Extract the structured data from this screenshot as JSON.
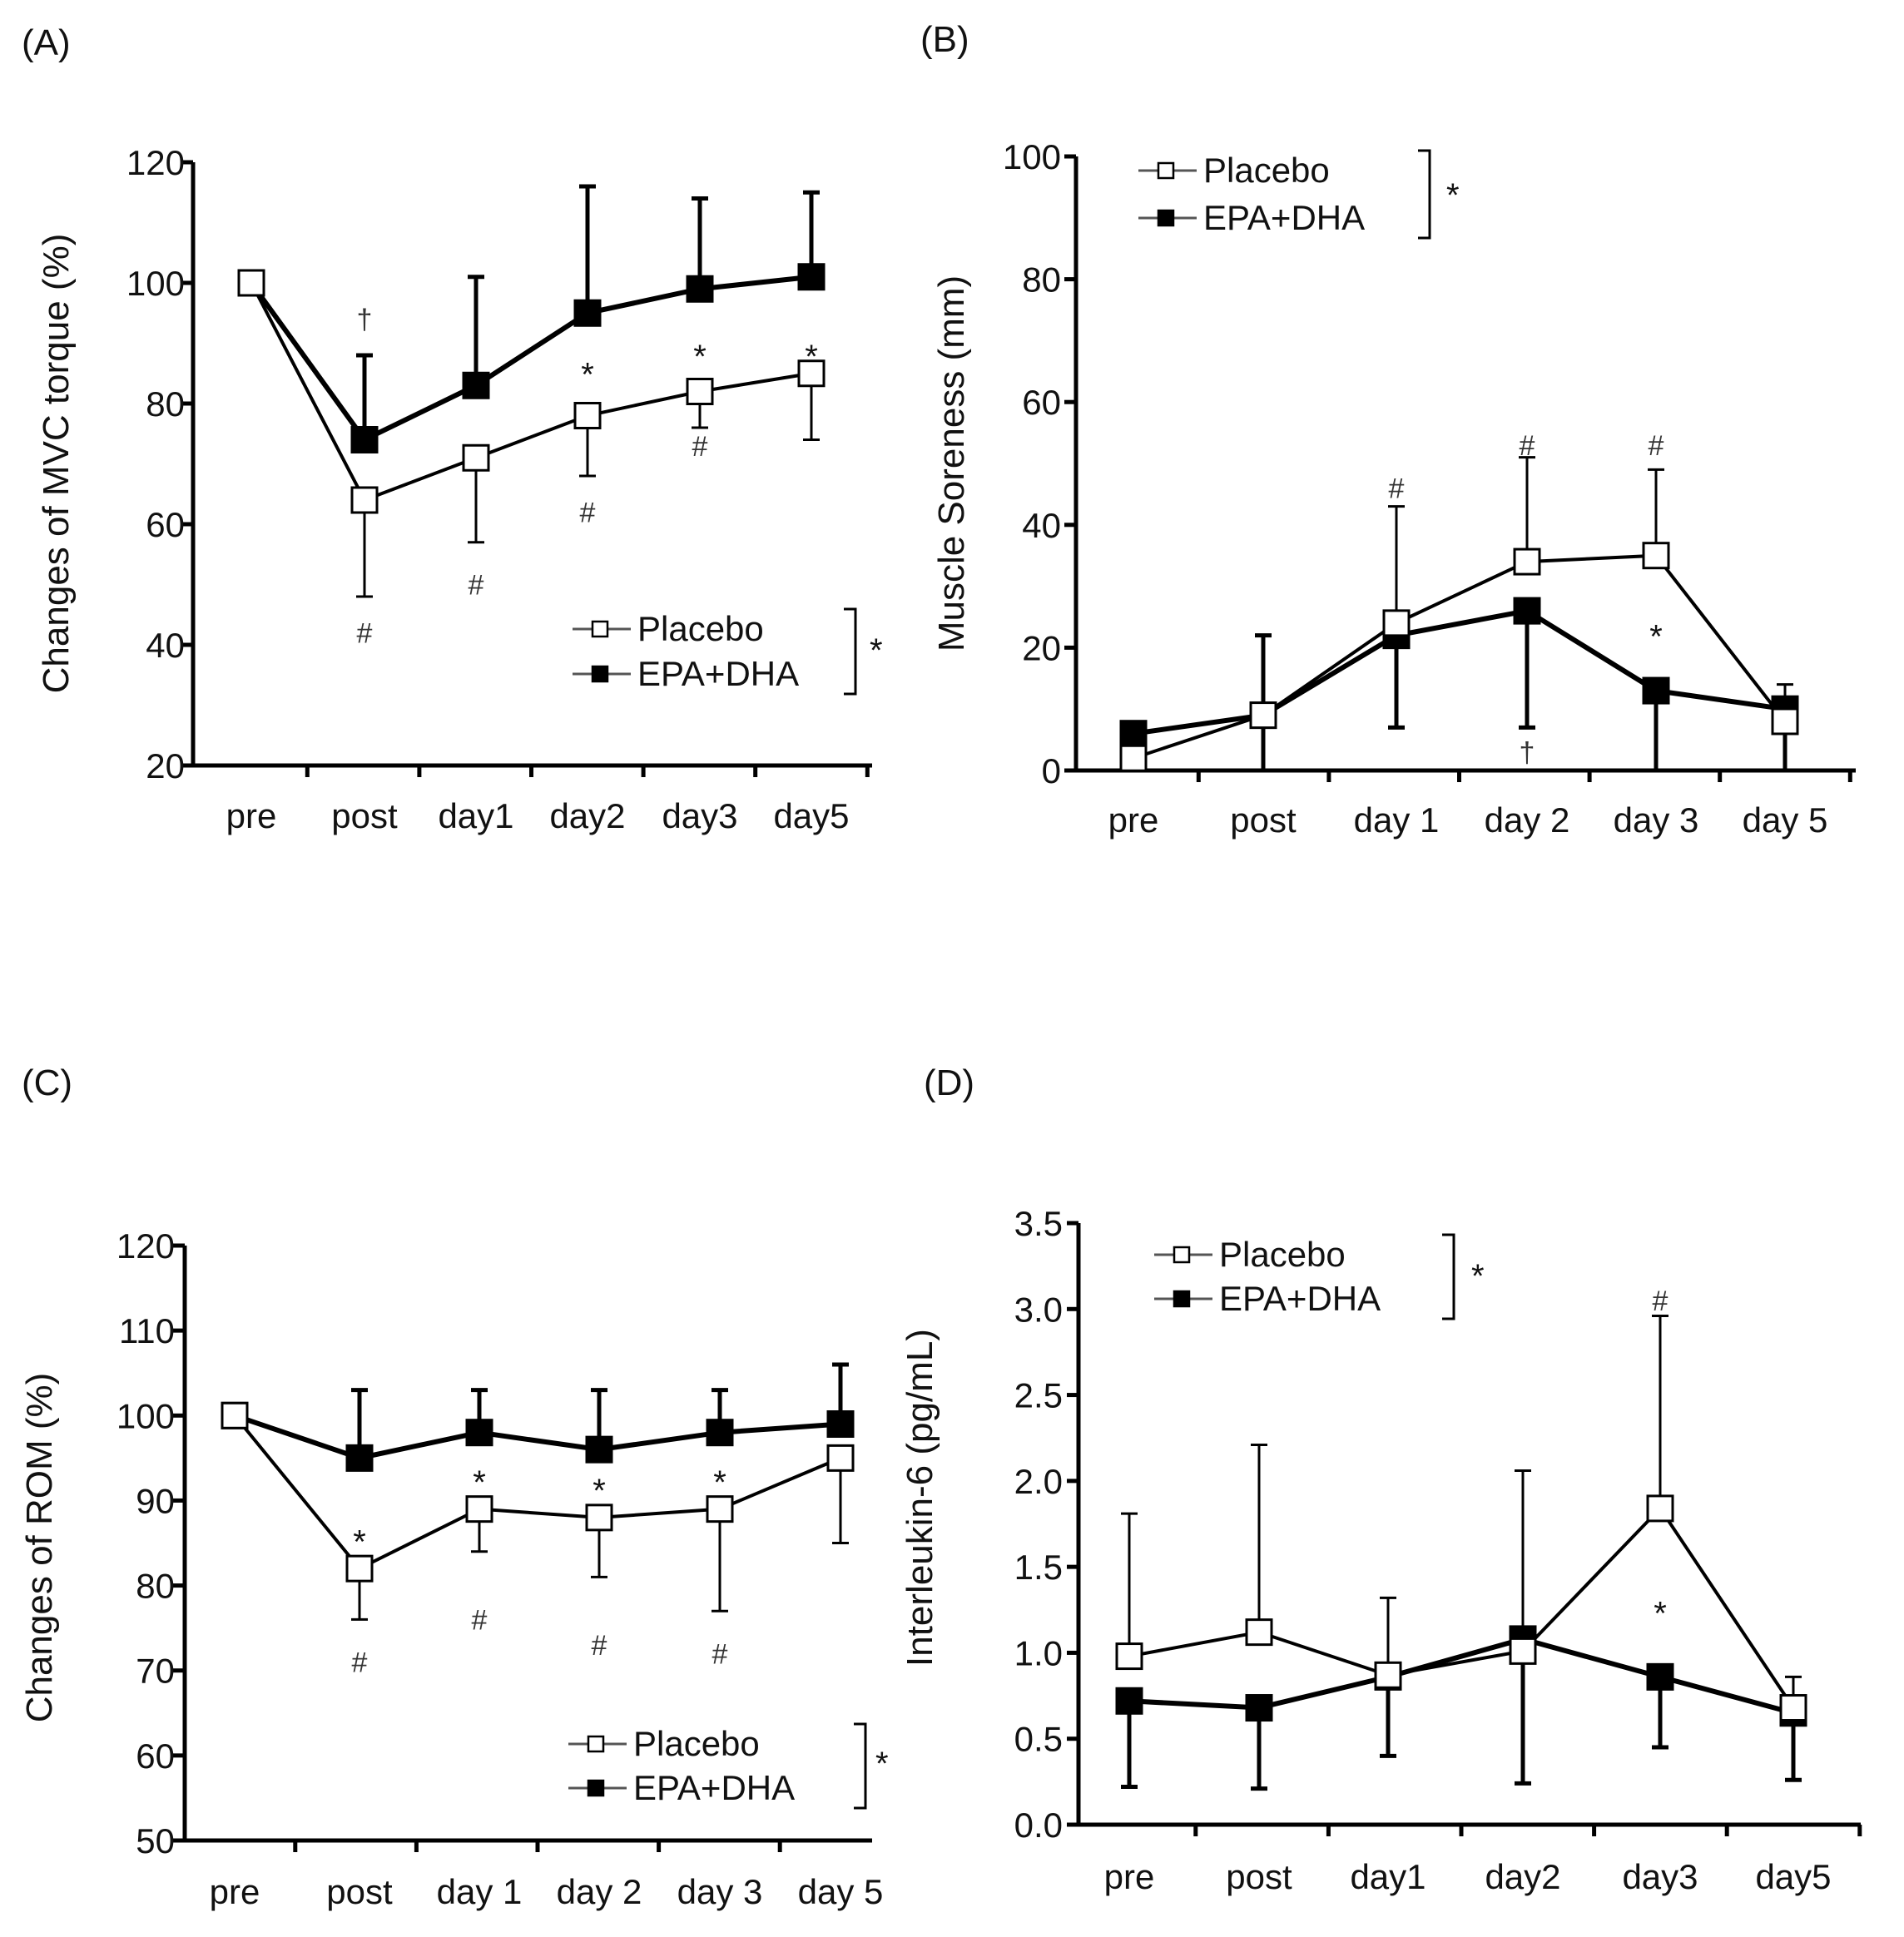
{
  "chart_data": [
    {
      "id": "A",
      "panel_label": "(A)",
      "type": "line",
      "title": "",
      "xlabel": "",
      "ylabel": "Changes of MVC torque (%)",
      "categories": [
        "pre",
        "post",
        "day1",
        "day2",
        "day3",
        "day5"
      ],
      "ylim": [
        20,
        120
      ],
      "yticks": [
        20,
        40,
        60,
        80,
        100,
        120
      ],
      "series": [
        {
          "name": "Placebo",
          "marker": "open-square",
          "values": [
            100,
            64,
            71,
            78,
            82,
            85
          ],
          "sd_down": [
            0,
            16,
            14,
            10,
            6,
            11
          ]
        },
        {
          "name": "EPA+DHA",
          "marker": "filled-square",
          "values": [
            100,
            74,
            83,
            95,
            99,
            101
          ],
          "sd_up": [
            0,
            14,
            18,
            21,
            15,
            14
          ]
        }
      ],
      "legend": {
        "placement": "bottom-right",
        "marker": "*"
      },
      "annotations": [
        {
          "label": "†",
          "x": "post",
          "y": 94
        },
        {
          "label": "*",
          "x": "day2",
          "y": 86
        },
        {
          "label": "*",
          "x": "day3",
          "y": 89
        },
        {
          "label": "*",
          "x": "day5",
          "y": 89
        },
        {
          "label": "#",
          "x": "post",
          "y": 42
        },
        {
          "label": "#",
          "x": "day1",
          "y": 50
        },
        {
          "label": "#",
          "x": "day2",
          "y": 62
        },
        {
          "label": "#",
          "x": "day3",
          "y": 73
        }
      ]
    },
    {
      "id": "B",
      "panel_label": "(B)",
      "type": "line",
      "title": "",
      "xlabel": "",
      "ylabel": "Muscle Soreness (mm)",
      "categories": [
        "pre",
        "post",
        "day 1",
        "day 2",
        "day 3",
        "day 5"
      ],
      "ylim": [
        0,
        100
      ],
      "yticks": [
        0,
        20,
        40,
        60,
        80,
        100
      ],
      "series": [
        {
          "name": "Placebo",
          "marker": "open-square",
          "values": [
            2,
            9,
            24,
            34,
            35,
            8
          ],
          "sd_up": [
            0,
            0,
            19,
            17,
            14,
            6
          ]
        },
        {
          "name": "EPA+DHA",
          "marker": "filled-square",
          "values": [
            6,
            9,
            22,
            26,
            13,
            10
          ],
          "sd_up": [
            0,
            13,
            0,
            0,
            0,
            0
          ],
          "sd_down": [
            0,
            9,
            15,
            19,
            13,
            10
          ]
        }
      ],
      "legend": {
        "placement": "top-left",
        "marker": "*"
      },
      "annotations": [
        {
          "label": "#",
          "x": "day 1",
          "y": 46
        },
        {
          "label": "#",
          "x": "day 2",
          "y": 53
        },
        {
          "label": "#",
          "x": "day 3",
          "y": 53
        },
        {
          "label": "*",
          "x": "day 3",
          "y": 23
        },
        {
          "label": "†",
          "x": "day 2",
          "y": 3
        }
      ]
    },
    {
      "id": "C",
      "panel_label": "(C)",
      "type": "line",
      "title": "",
      "xlabel": "",
      "ylabel": "Changes of ROM (%)",
      "categories": [
        "pre",
        "post",
        "day 1",
        "day 2",
        "day 3",
        "day 5"
      ],
      "ylim": [
        50,
        120
      ],
      "yticks": [
        50,
        60,
        70,
        80,
        90,
        100,
        110,
        120
      ],
      "series": [
        {
          "name": "Placebo",
          "marker": "open-square",
          "values": [
            100,
            82,
            89,
            88,
            89,
            95
          ],
          "sd_down": [
            0,
            6,
            5,
            7,
            12,
            10
          ]
        },
        {
          "name": "EPA+DHA",
          "marker": "filled-square",
          "values": [
            100,
            95,
            98,
            96,
            98,
            99
          ],
          "sd_up": [
            0,
            8,
            5,
            7,
            5,
            7
          ]
        }
      ],
      "legend": {
        "placement": "bottom-right",
        "marker": "*"
      },
      "annotations": [
        {
          "label": "*",
          "x": "post",
          "y": 86
        },
        {
          "label": "*",
          "x": "day 1",
          "y": 93
        },
        {
          "label": "*",
          "x": "day 2",
          "y": 92
        },
        {
          "label": "*",
          "x": "day 3",
          "y": 93
        },
        {
          "label": "#",
          "x": "post",
          "y": 71
        },
        {
          "label": "#",
          "x": "day 1",
          "y": 76
        },
        {
          "label": "#",
          "x": "day 2",
          "y": 73
        },
        {
          "label": "#",
          "x": "day 3",
          "y": 72
        }
      ]
    },
    {
      "id": "D",
      "panel_label": "(D)",
      "type": "line",
      "title": "",
      "xlabel": "",
      "ylabel": "Interleukin-6 (pg/mL)",
      "categories": [
        "pre",
        "post",
        "day1",
        "day2",
        "day3",
        "day5"
      ],
      "ylim": [
        0,
        3.5
      ],
      "yticks": [
        "0.0",
        "0.5",
        "1.0",
        "1.5",
        "2.0",
        "2.5",
        "3.0",
        "3.5"
      ],
      "series": [
        {
          "name": "Placebo",
          "marker": "open-square",
          "values": [
            0.98,
            1.12,
            0.87,
            1.01,
            1.84,
            0.68
          ],
          "sd_up": [
            0.83,
            1.09,
            0.45,
            1.05,
            1.12,
            0.18
          ]
        },
        {
          "name": "EPA+DHA",
          "marker": "filled-square",
          "values": [
            0.72,
            0.68,
            0.86,
            1.08,
            0.86,
            0.65
          ],
          "sd_down": [
            0.5,
            0.47,
            0.46,
            0.84,
            0.41,
            0.39
          ]
        }
      ],
      "legend": {
        "placement": "top-left",
        "marker": "*"
      },
      "annotations": [
        {
          "label": "#",
          "x": "day3",
          "y": 3.05
        },
        {
          "label": "*",
          "x": "day3",
          "y": 1.27
        }
      ]
    }
  ]
}
